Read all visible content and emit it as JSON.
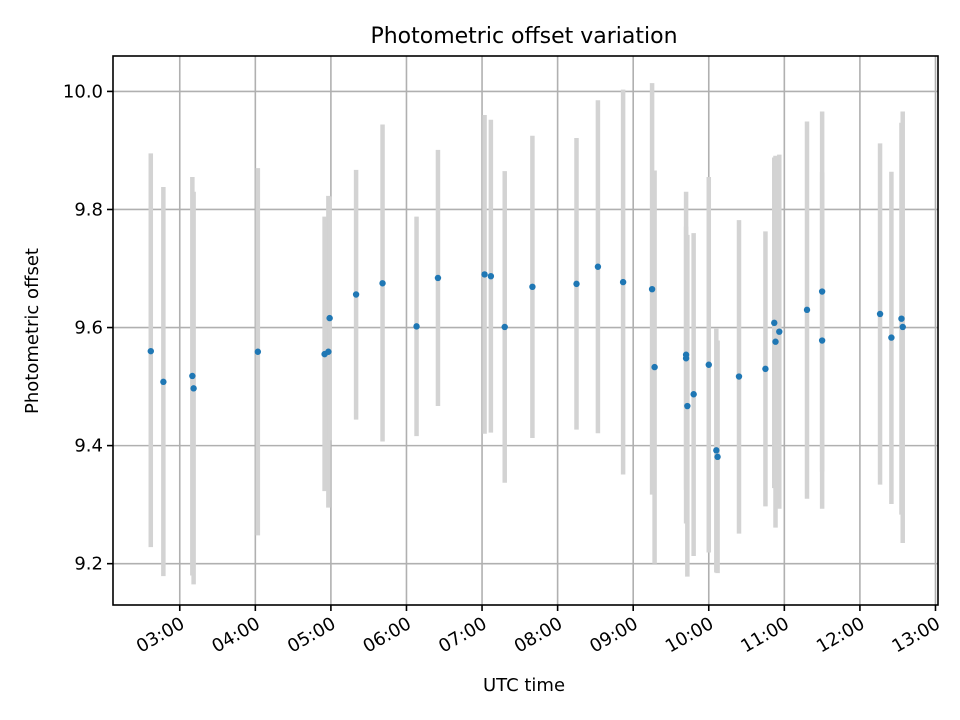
{
  "chart_data": {
    "type": "scatter",
    "title": "Photometric offset variation",
    "xlabel": "UTC time",
    "ylabel": "Photometric offset",
    "ylim": [
      9.13,
      10.06
    ],
    "xlim": [
      "02:07",
      "13:02"
    ],
    "grid": true,
    "x_ticks": [
      "03:00",
      "04:00",
      "05:00",
      "06:00",
      "07:00",
      "08:00",
      "09:00",
      "10:00",
      "11:00",
      "12:00",
      "13:00"
    ],
    "y_ticks": [
      "9.2",
      "9.4",
      "9.6",
      "9.8",
      "10.0"
    ],
    "error_bar_color": "#d3d3d3",
    "point_color": "#1f77b4",
    "points": [
      {
        "t": "02:37",
        "y": 9.56,
        "lo": 9.228,
        "hi": 9.895
      },
      {
        "t": "02:47",
        "y": 9.508,
        "lo": 9.179,
        "hi": 9.838
      },
      {
        "t": "03:10",
        "y": 9.518,
        "lo": 9.18,
        "hi": 9.855
      },
      {
        "t": "03:11",
        "y": 9.497,
        "lo": 9.165,
        "hi": 9.83
      },
      {
        "t": "04:02",
        "y": 9.559,
        "lo": 9.248,
        "hi": 9.87
      },
      {
        "t": "04:55",
        "y": 9.555,
        "lo": 9.323,
        "hi": 9.788
      },
      {
        "t": "04:58",
        "y": 9.559,
        "lo": 9.295,
        "hi": 9.823
      },
      {
        "t": "04:59",
        "y": 9.616,
        "lo": 9.409,
        "hi": 9.822
      },
      {
        "t": "05:20",
        "y": 9.656,
        "lo": 9.444,
        "hi": 9.867
      },
      {
        "t": "05:41",
        "y": 9.675,
        "lo": 9.407,
        "hi": 9.944
      },
      {
        "t": "06:08",
        "y": 9.602,
        "lo": 9.416,
        "hi": 9.788
      },
      {
        "t": "06:25",
        "y": 9.684,
        "lo": 9.467,
        "hi": 9.901
      },
      {
        "t": "07:02",
        "y": 9.69,
        "lo": 9.42,
        "hi": 9.96
      },
      {
        "t": "07:07",
        "y": 9.687,
        "lo": 9.422,
        "hi": 9.952
      },
      {
        "t": "07:18",
        "y": 9.601,
        "lo": 9.337,
        "hi": 9.865
      },
      {
        "t": "07:40",
        "y": 9.669,
        "lo": 9.413,
        "hi": 9.925
      },
      {
        "t": "08:15",
        "y": 9.674,
        "lo": 9.427,
        "hi": 9.921
      },
      {
        "t": "08:32",
        "y": 9.703,
        "lo": 9.421,
        "hi": 9.985
      },
      {
        "t": "08:52",
        "y": 9.677,
        "lo": 9.351,
        "hi": 10.003
      },
      {
        "t": "09:15",
        "y": 9.665,
        "lo": 9.317,
        "hi": 10.014
      },
      {
        "t": "09:17",
        "y": 9.533,
        "lo": 9.2,
        "hi": 9.866
      },
      {
        "t": "09:42",
        "y": 9.554,
        "lo": 9.268,
        "hi": 9.83
      },
      {
        "t": "09:42",
        "y": 9.548,
        "lo": 9.325,
        "hi": 9.771
      },
      {
        "t": "09:43",
        "y": 9.467,
        "lo": 9.178,
        "hi": 9.757
      },
      {
        "t": "09:48",
        "y": 9.487,
        "lo": 9.213,
        "hi": 9.76
      },
      {
        "t": "10:00",
        "y": 9.537,
        "lo": 9.219,
        "hi": 9.855
      },
      {
        "t": "10:06",
        "y": 9.392,
        "lo": 9.185,
        "hi": 9.598
      },
      {
        "t": "10:07",
        "y": 9.381,
        "lo": 9.184,
        "hi": 9.578
      },
      {
        "t": "10:24",
        "y": 9.517,
        "lo": 9.251,
        "hi": 9.782
      },
      {
        "t": "10:45",
        "y": 9.53,
        "lo": 9.297,
        "hi": 9.763
      },
      {
        "t": "10:52",
        "y": 9.608,
        "lo": 9.328,
        "hi": 9.888
      },
      {
        "t": "10:53",
        "y": 9.576,
        "lo": 9.261,
        "hi": 9.891
      },
      {
        "t": "10:56",
        "y": 9.593,
        "lo": 9.293,
        "hi": 9.893
      },
      {
        "t": "11:18",
        "y": 9.63,
        "lo": 9.31,
        "hi": 9.949
      },
      {
        "t": "11:30",
        "y": 9.661,
        "lo": 9.356,
        "hi": 9.966
      },
      {
        "t": "11:30",
        "y": 9.578,
        "lo": 9.293,
        "hi": 9.863
      },
      {
        "t": "12:16",
        "y": 9.623,
        "lo": 9.334,
        "hi": 9.912
      },
      {
        "t": "12:25",
        "y": 9.583,
        "lo": 9.301,
        "hi": 9.864
      },
      {
        "t": "12:33",
        "y": 9.615,
        "lo": 9.283,
        "hi": 9.947
      },
      {
        "t": "12:34",
        "y": 9.601,
        "lo": 9.235,
        "hi": 9.966
      }
    ]
  }
}
